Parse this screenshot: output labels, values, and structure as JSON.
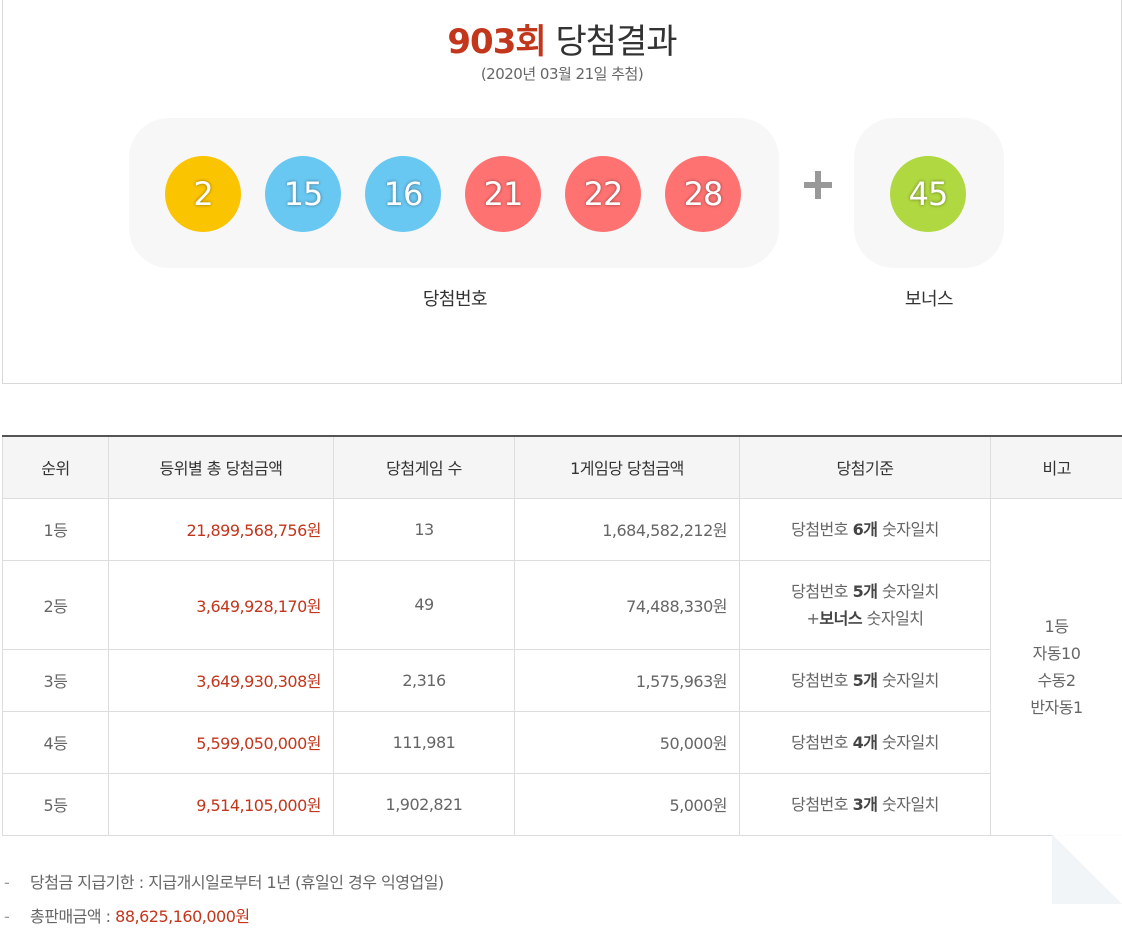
{
  "header": {
    "round": "903회",
    "title": "당첨결과",
    "draw_date": "(2020년 03월 21일 추첨)"
  },
  "winning_numbers": [
    {
      "value": "2",
      "color": "#fbc400"
    },
    {
      "value": "15",
      "color": "#69c8f2"
    },
    {
      "value": "16",
      "color": "#69c8f2"
    },
    {
      "value": "21",
      "color": "#ff7272"
    },
    {
      "value": "22",
      "color": "#ff7272"
    },
    {
      "value": "28",
      "color": "#ff7272"
    }
  ],
  "bonus": {
    "value": "45",
    "color": "#b0d840"
  },
  "captions": {
    "winning": "당첨번호",
    "bonus": "보너스"
  },
  "table": {
    "headers": [
      "순위",
      "등위별 총 당첨금액",
      "당첨게임 수",
      "1게임당 당첨금액",
      "당첨기준",
      "비고"
    ],
    "rows": [
      {
        "rank": "1등",
        "total": "21,899,568,756원",
        "winners": "13",
        "per_game": "1,684,582,212원",
        "crit_pre": "당첨번호 ",
        "crit_bold": "6개",
        "crit_post": " 숫자일치"
      },
      {
        "rank": "2등",
        "total": "3,649,928,170원",
        "winners": "49",
        "per_game": "74,488,330원",
        "crit_pre": "당첨번호 ",
        "crit_bold": "5개",
        "crit_post": " 숫자일치",
        "crit2_pre": "+",
        "crit2_bold": "보너스",
        "crit2_post": " 숫자일치"
      },
      {
        "rank": "3등",
        "total": "3,649,930,308원",
        "winners": "2,316",
        "per_game": "1,575,963원",
        "crit_pre": "당첨번호 ",
        "crit_bold": "5개",
        "crit_post": " 숫자일치"
      },
      {
        "rank": "4등",
        "total": "5,599,050,000원",
        "winners": "111,981",
        "per_game": "50,000원",
        "crit_pre": "당첨번호 ",
        "crit_bold": "4개",
        "crit_post": " 숫자일치"
      },
      {
        "rank": "5등",
        "total": "9,514,105,000원",
        "winners": "1,902,821",
        "per_game": "5,000원",
        "crit_pre": "당첨번호 ",
        "crit_bold": "3개",
        "crit_post": " 숫자일치"
      }
    ],
    "note_lines": [
      "1등",
      "자동10",
      "수동2",
      "반자동1"
    ]
  },
  "footer": {
    "dash": "-",
    "deadline": "당첨금 지급기한 : 지급개시일로부터 1년 (휴일인 경우 익영업일)",
    "sales_label": "총판매금액 : ",
    "sales_value": "88,625,160,000원"
  }
}
